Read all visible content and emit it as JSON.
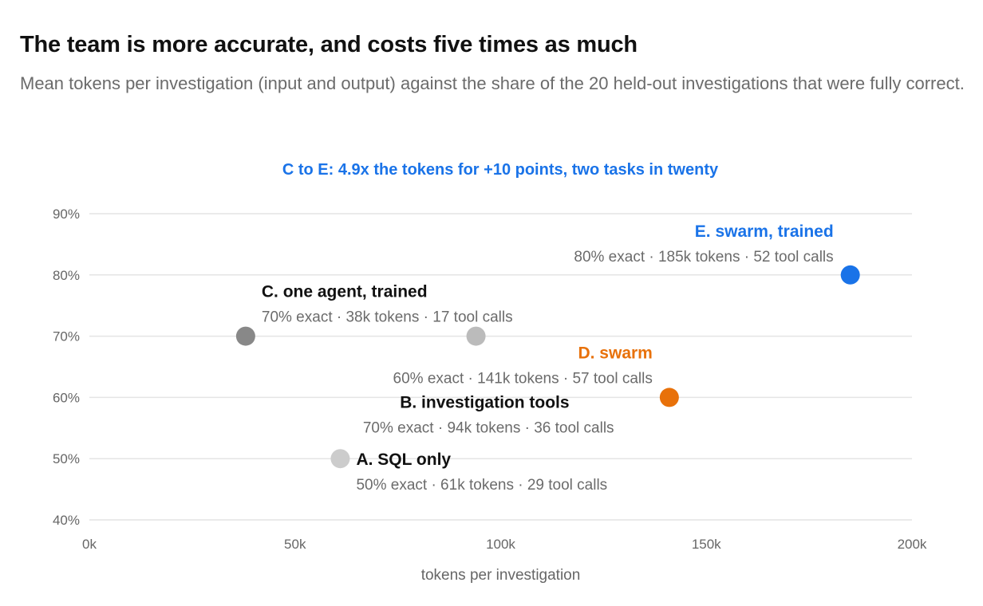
{
  "title": "The team is more accurate, and costs five times as much",
  "subtitle": "Mean tokens per investigation (input and output) against the share of the 20 held-out investigations that were fully correct.",
  "chart_data": {
    "type": "scatter",
    "annotation": "C to E: 4.9x the tokens for +10 points, two tasks in twenty",
    "xlabel": "tokens per investigation",
    "ylabel": "",
    "xlim": [
      0,
      200000
    ],
    "ylim": [
      40,
      90
    ],
    "x_ticks": [
      {
        "value": 0,
        "label": "0k"
      },
      {
        "value": 50000,
        "label": "50k"
      },
      {
        "value": 100000,
        "label": "100k"
      },
      {
        "value": 150000,
        "label": "150k"
      },
      {
        "value": 200000,
        "label": "200k"
      }
    ],
    "y_ticks": [
      {
        "value": 40,
        "label": "40%"
      },
      {
        "value": 50,
        "label": "50%"
      },
      {
        "value": 60,
        "label": "60%"
      },
      {
        "value": 70,
        "label": "70%"
      },
      {
        "value": 80,
        "label": "80%"
      },
      {
        "value": 90,
        "label": "90%"
      }
    ],
    "grid": "horizontal",
    "points": [
      {
        "id": "a",
        "name": "A. SQL only",
        "detail": "50% exact · 61k tokens · 29 tool calls",
        "x": 61000,
        "y": 50,
        "color": "#cccccc",
        "name_color": "#111111"
      },
      {
        "id": "b",
        "name": "B. investigation tools",
        "detail": "70% exact · 94k tokens · 36 tool calls",
        "x": 94000,
        "y": 70,
        "color": "#bbbbbb",
        "name_color": "#111111"
      },
      {
        "id": "c",
        "name": "C. one agent, trained",
        "detail": "70% exact · 38k tokens · 17 tool calls",
        "x": 38000,
        "y": 70,
        "color": "#888888",
        "name_color": "#111111"
      },
      {
        "id": "d",
        "name": "D. swarm",
        "detail": "60% exact · 141k tokens · 57 tool calls",
        "x": 141000,
        "y": 60,
        "color": "#e8710a",
        "name_color": "#e8710a"
      },
      {
        "id": "e",
        "name": "E. swarm, trained",
        "detail": "80% exact · 185k tokens · 52 tool calls",
        "x": 185000,
        "y": 80,
        "color": "#1a73e8",
        "name_color": "#1a73e8"
      }
    ]
  }
}
